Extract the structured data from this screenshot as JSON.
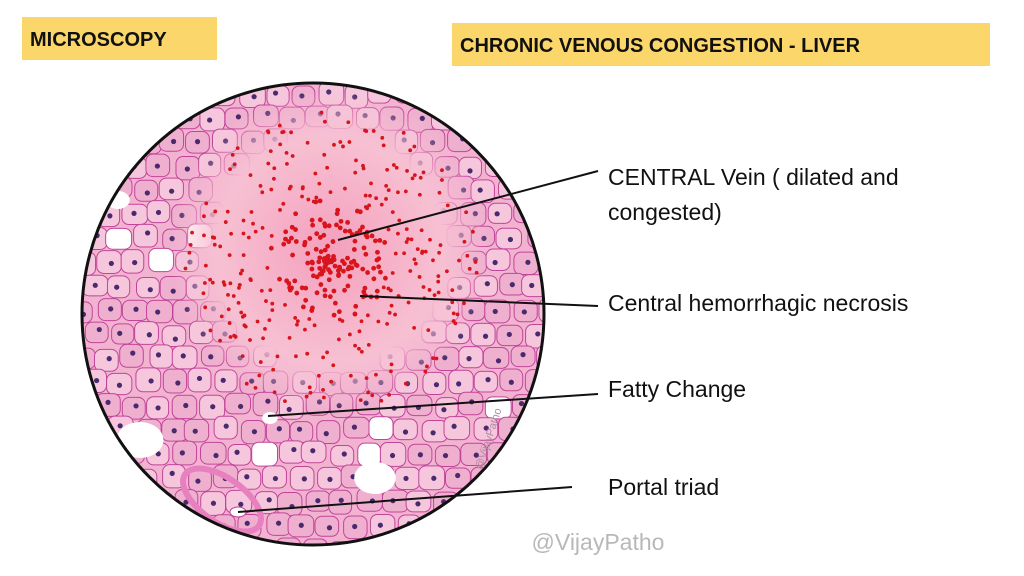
{
  "header": {
    "left_title": "MICROSCOPY",
    "right_title": "CHRONIC VENOUS CONGESTION - LIVER"
  },
  "labels": [
    {
      "lines": [
        "CENTRAL Vein ( dilated and",
        "congested)"
      ]
    },
    {
      "lines": [
        "Central hemorrhagic necrosis"
      ]
    },
    {
      "lines": [
        "Fatty Change"
      ]
    },
    {
      "lines": [
        "Portal triad"
      ]
    }
  ],
  "image_watermark": "@VijayPatho",
  "footer": {
    "watermark": "@VijayPatho"
  }
}
